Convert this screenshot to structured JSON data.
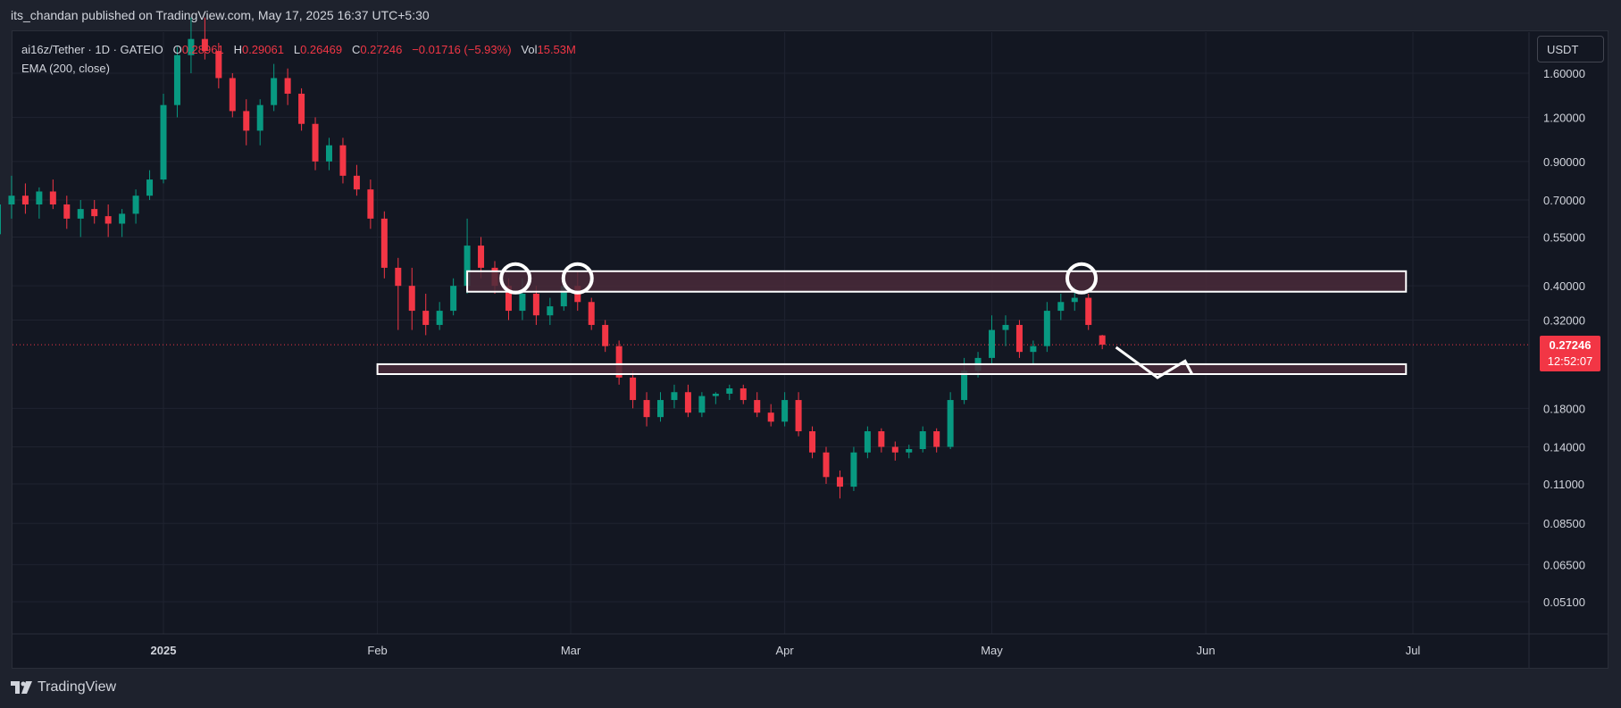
{
  "header": {
    "publish_text": "its_chandan published on TradingView.com, May 17, 2025 16:37 UTC+5:30"
  },
  "legend": {
    "symbol": "ai16z/Tether · 1D · GATEIO",
    "o_label": "O",
    "o_value": "0.28961",
    "h_label": "H",
    "h_value": "0.29061",
    "l_label": "L",
    "l_value": "0.26469",
    "c_label": "C",
    "c_value": "0.27246",
    "change": "−0.01716 (−5.93%)",
    "vol_label": "Vol",
    "vol_value": "15.53M",
    "indicator": "EMA (200, close)"
  },
  "currency_button": "USDT",
  "last_price": {
    "price": "0.27246",
    "countdown": "12:52:07"
  },
  "colors": {
    "background": "#131722",
    "up": "#089981",
    "down": "#f23645",
    "grid": "#1f2330",
    "zone_fill": "#4a2a3a",
    "zone_stroke": "#ffffff",
    "annotation": "#ffffff"
  },
  "footer": {
    "brand": "TradingView"
  },
  "chart_data": {
    "type": "candlestick",
    "symbol": "ai16z/Tether",
    "interval": "1D",
    "exchange": "GATEIO",
    "y_scale": "log",
    "y_ticks": [
      "1.60000",
      "1.20000",
      "0.90000",
      "0.70000",
      "0.55000",
      "0.40000",
      "0.32000",
      "0.18000",
      "0.14000",
      "0.11000",
      "0.08500",
      "0.06500",
      "0.05100"
    ],
    "x_ticks": [
      "2025",
      "Feb",
      "Mar",
      "Apr",
      "May",
      "Jun",
      "Jul"
    ],
    "x_range": [
      "2024-12-05",
      "2025-07-14"
    ],
    "last_close": 0.27246,
    "series": [
      {
        "d": "2024-12-06",
        "o": 0.52,
        "h": 0.58,
        "l": 0.48,
        "c": 0.56
      },
      {
        "d": "2024-12-08",
        "o": 0.56,
        "h": 0.7,
        "l": 0.55,
        "c": 0.68
      },
      {
        "d": "2024-12-10",
        "o": 0.68,
        "h": 0.82,
        "l": 0.62,
        "c": 0.72
      },
      {
        "d": "2024-12-12",
        "o": 0.72,
        "h": 0.78,
        "l": 0.64,
        "c": 0.68
      },
      {
        "d": "2024-12-14",
        "o": 0.68,
        "h": 0.76,
        "l": 0.62,
        "c": 0.74
      },
      {
        "d": "2024-12-16",
        "o": 0.74,
        "h": 0.8,
        "l": 0.66,
        "c": 0.68
      },
      {
        "d": "2024-12-18",
        "o": 0.68,
        "h": 0.72,
        "l": 0.58,
        "c": 0.62
      },
      {
        "d": "2024-12-20",
        "o": 0.62,
        "h": 0.7,
        "l": 0.55,
        "c": 0.66
      },
      {
        "d": "2024-12-22",
        "o": 0.66,
        "h": 0.7,
        "l": 0.6,
        "c": 0.63
      },
      {
        "d": "2024-12-24",
        "o": 0.63,
        "h": 0.68,
        "l": 0.55,
        "c": 0.6
      },
      {
        "d": "2024-12-26",
        "o": 0.6,
        "h": 0.66,
        "l": 0.55,
        "c": 0.64
      },
      {
        "d": "2024-12-28",
        "o": 0.64,
        "h": 0.75,
        "l": 0.6,
        "c": 0.72
      },
      {
        "d": "2024-12-30",
        "o": 0.72,
        "h": 0.85,
        "l": 0.7,
        "c": 0.8
      },
      {
        "d": "2025-01-01",
        "o": 0.8,
        "h": 1.4,
        "l": 0.78,
        "c": 1.3
      },
      {
        "d": "2025-01-03",
        "o": 1.3,
        "h": 1.9,
        "l": 1.2,
        "c": 1.8
      },
      {
        "d": "2025-01-05",
        "o": 1.8,
        "h": 2.3,
        "l": 1.6,
        "c": 2.0
      },
      {
        "d": "2025-01-07",
        "o": 2.0,
        "h": 2.3,
        "l": 1.75,
        "c": 1.85
      },
      {
        "d": "2025-01-09",
        "o": 1.85,
        "h": 1.95,
        "l": 1.45,
        "c": 1.55
      },
      {
        "d": "2025-01-11",
        "o": 1.55,
        "h": 1.6,
        "l": 1.2,
        "c": 1.25
      },
      {
        "d": "2025-01-13",
        "o": 1.25,
        "h": 1.35,
        "l": 1.0,
        "c": 1.1
      },
      {
        "d": "2025-01-15",
        "o": 1.1,
        "h": 1.35,
        "l": 1.0,
        "c": 1.3
      },
      {
        "d": "2025-01-17",
        "o": 1.3,
        "h": 1.7,
        "l": 1.25,
        "c": 1.55
      },
      {
        "d": "2025-01-19",
        "o": 1.55,
        "h": 1.65,
        "l": 1.3,
        "c": 1.4
      },
      {
        "d": "2025-01-21",
        "o": 1.4,
        "h": 1.45,
        "l": 1.1,
        "c": 1.15
      },
      {
        "d": "2025-01-23",
        "o": 1.15,
        "h": 1.2,
        "l": 0.85,
        "c": 0.9
      },
      {
        "d": "2025-01-25",
        "o": 0.9,
        "h": 1.05,
        "l": 0.85,
        "c": 1.0
      },
      {
        "d": "2025-01-27",
        "o": 1.0,
        "h": 1.05,
        "l": 0.78,
        "c": 0.82
      },
      {
        "d": "2025-01-29",
        "o": 0.82,
        "h": 0.88,
        "l": 0.72,
        "c": 0.75
      },
      {
        "d": "2025-01-31",
        "o": 0.75,
        "h": 0.8,
        "l": 0.58,
        "c": 0.62
      },
      {
        "d": "2025-02-02",
        "o": 0.62,
        "h": 0.65,
        "l": 0.42,
        "c": 0.45
      },
      {
        "d": "2025-02-04",
        "o": 0.45,
        "h": 0.48,
        "l": 0.3,
        "c": 0.4
      },
      {
        "d": "2025-02-06",
        "o": 0.4,
        "h": 0.45,
        "l": 0.3,
        "c": 0.34
      },
      {
        "d": "2025-02-08",
        "o": 0.34,
        "h": 0.38,
        "l": 0.29,
        "c": 0.31
      },
      {
        "d": "2025-02-10",
        "o": 0.31,
        "h": 0.36,
        "l": 0.3,
        "c": 0.34
      },
      {
        "d": "2025-02-12",
        "o": 0.34,
        "h": 0.42,
        "l": 0.33,
        "c": 0.4
      },
      {
        "d": "2025-02-14",
        "o": 0.4,
        "h": 0.62,
        "l": 0.38,
        "c": 0.52
      },
      {
        "d": "2025-02-16",
        "o": 0.52,
        "h": 0.55,
        "l": 0.42,
        "c": 0.45
      },
      {
        "d": "2025-02-18",
        "o": 0.45,
        "h": 0.47,
        "l": 0.38,
        "c": 0.4
      },
      {
        "d": "2025-02-20",
        "o": 0.4,
        "h": 0.42,
        "l": 0.32,
        "c": 0.34
      },
      {
        "d": "2025-02-22",
        "o": 0.34,
        "h": 0.42,
        "l": 0.32,
        "c": 0.38
      },
      {
        "d": "2025-02-24",
        "o": 0.38,
        "h": 0.4,
        "l": 0.31,
        "c": 0.33
      },
      {
        "d": "2025-02-26",
        "o": 0.33,
        "h": 0.37,
        "l": 0.31,
        "c": 0.35
      },
      {
        "d": "2025-02-28",
        "o": 0.35,
        "h": 0.42,
        "l": 0.34,
        "c": 0.4
      },
      {
        "d": "2025-03-02",
        "o": 0.4,
        "h": 0.44,
        "l": 0.34,
        "c": 0.36
      },
      {
        "d": "2025-03-04",
        "o": 0.36,
        "h": 0.37,
        "l": 0.3,
        "c": 0.31
      },
      {
        "d": "2025-03-06",
        "o": 0.31,
        "h": 0.32,
        "l": 0.26,
        "c": 0.27
      },
      {
        "d": "2025-03-08",
        "o": 0.27,
        "h": 0.28,
        "l": 0.21,
        "c": 0.22
      },
      {
        "d": "2025-03-10",
        "o": 0.22,
        "h": 0.23,
        "l": 0.18,
        "c": 0.19
      },
      {
        "d": "2025-03-12",
        "o": 0.19,
        "h": 0.2,
        "l": 0.16,
        "c": 0.17
      },
      {
        "d": "2025-03-14",
        "o": 0.17,
        "h": 0.2,
        "l": 0.165,
        "c": 0.19
      },
      {
        "d": "2025-03-16",
        "o": 0.19,
        "h": 0.21,
        "l": 0.18,
        "c": 0.2
      },
      {
        "d": "2025-03-18",
        "o": 0.2,
        "h": 0.21,
        "l": 0.17,
        "c": 0.175
      },
      {
        "d": "2025-03-20",
        "o": 0.175,
        "h": 0.2,
        "l": 0.17,
        "c": 0.195
      },
      {
        "d": "2025-03-22",
        "o": 0.195,
        "h": 0.2,
        "l": 0.185,
        "c": 0.198
      },
      {
        "d": "2025-03-24",
        "o": 0.198,
        "h": 0.21,
        "l": 0.19,
        "c": 0.205
      },
      {
        "d": "2025-03-26",
        "o": 0.205,
        "h": 0.21,
        "l": 0.185,
        "c": 0.19
      },
      {
        "d": "2025-03-28",
        "o": 0.19,
        "h": 0.2,
        "l": 0.17,
        "c": 0.175
      },
      {
        "d": "2025-03-30",
        "o": 0.175,
        "h": 0.185,
        "l": 0.16,
        "c": 0.165
      },
      {
        "d": "2025-04-01",
        "o": 0.165,
        "h": 0.2,
        "l": 0.16,
        "c": 0.19
      },
      {
        "d": "2025-04-03",
        "o": 0.19,
        "h": 0.2,
        "l": 0.15,
        "c": 0.155
      },
      {
        "d": "2025-04-05",
        "o": 0.155,
        "h": 0.16,
        "l": 0.13,
        "c": 0.135
      },
      {
        "d": "2025-04-07",
        "o": 0.135,
        "h": 0.14,
        "l": 0.11,
        "c": 0.115
      },
      {
        "d": "2025-04-09",
        "o": 0.115,
        "h": 0.12,
        "l": 0.1,
        "c": 0.108
      },
      {
        "d": "2025-04-11",
        "o": 0.108,
        "h": 0.14,
        "l": 0.105,
        "c": 0.135
      },
      {
        "d": "2025-04-13",
        "o": 0.135,
        "h": 0.16,
        "l": 0.13,
        "c": 0.155
      },
      {
        "d": "2025-04-15",
        "o": 0.155,
        "h": 0.158,
        "l": 0.135,
        "c": 0.14
      },
      {
        "d": "2025-04-17",
        "o": 0.14,
        "h": 0.145,
        "l": 0.128,
        "c": 0.135
      },
      {
        "d": "2025-04-19",
        "o": 0.135,
        "h": 0.142,
        "l": 0.13,
        "c": 0.138
      },
      {
        "d": "2025-04-21",
        "o": 0.138,
        "h": 0.16,
        "l": 0.135,
        "c": 0.155
      },
      {
        "d": "2025-04-23",
        "o": 0.155,
        "h": 0.158,
        "l": 0.135,
        "c": 0.14
      },
      {
        "d": "2025-04-25",
        "o": 0.14,
        "h": 0.2,
        "l": 0.138,
        "c": 0.19
      },
      {
        "d": "2025-04-27",
        "o": 0.19,
        "h": 0.25,
        "l": 0.185,
        "c": 0.23
      },
      {
        "d": "2025-04-29",
        "o": 0.23,
        "h": 0.26,
        "l": 0.22,
        "c": 0.25
      },
      {
        "d": "2025-05-01",
        "o": 0.25,
        "h": 0.33,
        "l": 0.24,
        "c": 0.3
      },
      {
        "d": "2025-05-03",
        "o": 0.3,
        "h": 0.33,
        "l": 0.27,
        "c": 0.31
      },
      {
        "d": "2025-05-05",
        "o": 0.31,
        "h": 0.32,
        "l": 0.25,
        "c": 0.26
      },
      {
        "d": "2025-05-07",
        "o": 0.26,
        "h": 0.28,
        "l": 0.24,
        "c": 0.27
      },
      {
        "d": "2025-05-09",
        "o": 0.27,
        "h": 0.36,
        "l": 0.26,
        "c": 0.34
      },
      {
        "d": "2025-05-11",
        "o": 0.34,
        "h": 0.38,
        "l": 0.32,
        "c": 0.36
      },
      {
        "d": "2025-05-13",
        "o": 0.36,
        "h": 0.4,
        "l": 0.34,
        "c": 0.37
      },
      {
        "d": "2025-05-15",
        "o": 0.37,
        "h": 0.38,
        "l": 0.3,
        "c": 0.31
      },
      {
        "d": "2025-05-17",
        "o": 0.28961,
        "h": 0.29061,
        "l": 0.26469,
        "c": 0.27246
      }
    ],
    "annotations": [
      {
        "type": "zone",
        "from": "2025-02-14",
        "to": "2025-06-30",
        "low": 0.385,
        "high": 0.44
      },
      {
        "type": "zone",
        "from": "2025-02-01",
        "to": "2025-06-30",
        "low": 0.225,
        "high": 0.24
      },
      {
        "type": "circle",
        "date": "2025-02-21",
        "price": 0.42
      },
      {
        "type": "circle",
        "date": "2025-03-02",
        "price": 0.42
      },
      {
        "type": "circle",
        "date": "2025-05-14",
        "price": 0.42
      },
      {
        "type": "arrow",
        "path": [
          [
            "2025-05-19",
            0.268
          ],
          [
            "2025-05-25",
            0.22
          ],
          [
            "2025-05-29",
            0.245
          ],
          [
            "2025-05-30",
            0.225
          ]
        ]
      }
    ]
  }
}
